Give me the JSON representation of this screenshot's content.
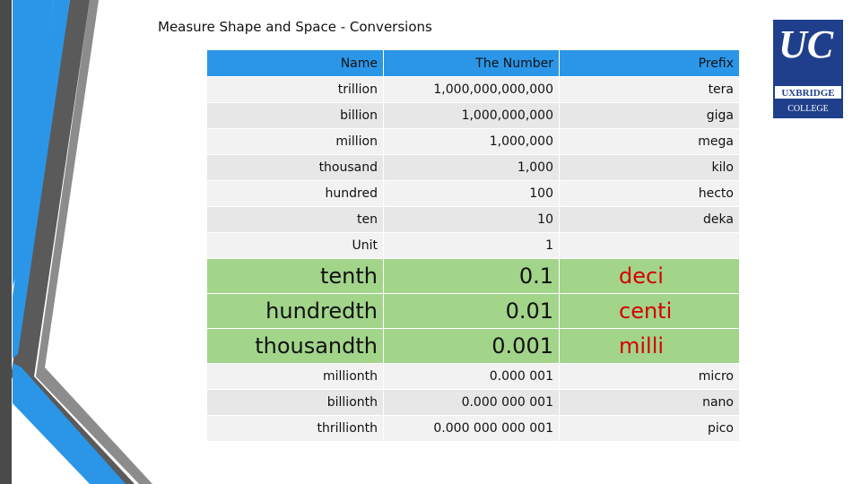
{
  "slide": {
    "title": "Measure Shape and Space - Conversions"
  },
  "logo": {
    "letters": "UC",
    "name_line1": "UXBRIDGE",
    "name_line2": "COLLEGE"
  },
  "table": {
    "headers": {
      "name": "Name",
      "number": "The Number",
      "prefix": "Prefix"
    },
    "rows_top": [
      {
        "name": "trillion",
        "number": "1,000,000,000,000",
        "prefix": "tera"
      },
      {
        "name": "billion",
        "number": "1,000,000,000",
        "prefix": "giga"
      },
      {
        "name": "million",
        "number": "1,000,000",
        "prefix": "mega"
      },
      {
        "name": "thousand",
        "number": "1,000",
        "prefix": "kilo"
      },
      {
        "name": "hundred",
        "number": "100",
        "prefix": "hecto"
      },
      {
        "name": "ten",
        "number": "10",
        "prefix": "deka"
      },
      {
        "name": "Unit",
        "number": "1",
        "prefix": ""
      }
    ],
    "rows_highlight": [
      {
        "name": "tenth",
        "number": "0.1",
        "prefix": "deci"
      },
      {
        "name": "hundredth",
        "number": "0.01",
        "prefix": "centi"
      },
      {
        "name": "thousandth",
        "number": "0.001",
        "prefix": "milli"
      }
    ],
    "rows_bottom": [
      {
        "name": "millionth",
        "number": "0.000 001",
        "prefix": "micro"
      },
      {
        "name": "billionth",
        "number": "0.000 000 001",
        "prefix": "nano"
      },
      {
        "name": "thrillionth",
        "number": "0.000 000 000 001",
        "prefix": "pico"
      }
    ]
  },
  "colors": {
    "header_blue": "#2b96e8",
    "highlight_green": "#a2d48a",
    "prefix_red": "#d40000"
  }
}
